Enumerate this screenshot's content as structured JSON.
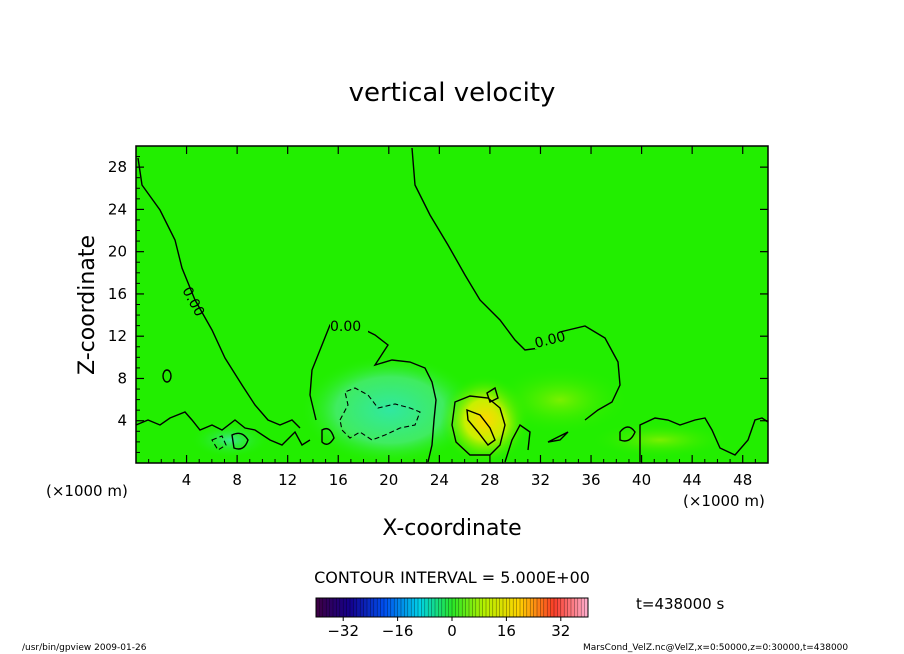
{
  "chart_data": {
    "type": "contour",
    "title": "vertical velocity",
    "xlabel": "X-coordinate",
    "ylabel": "Z-coordinate",
    "x_unit_left": "(×1000 m)",
    "x_unit_right": "(×1000 m)",
    "xlim": [
      0,
      50
    ],
    "ylim": [
      0,
      30
    ],
    "xticks": [
      4,
      8,
      12,
      16,
      20,
      24,
      28,
      32,
      36,
      40,
      44,
      48
    ],
    "yticks": [
      4,
      8,
      12,
      16,
      20,
      24,
      28
    ],
    "contour_interval_text": "CONTOUR INTERVAL = 5.000E+00",
    "contour_labels": [
      "0.00",
      "0.00",
      "0.00"
    ],
    "colorbar": {
      "ticks": [
        -32,
        -16,
        0,
        16,
        32
      ],
      "range": [
        -40,
        40
      ]
    },
    "time_text": "t=438000 s",
    "background_color": "#22ee00",
    "positive_blob": {
      "x": 28,
      "y": 3.5
    },
    "negative_blob": {
      "x": 20,
      "y": 4
    }
  },
  "footer": {
    "left": "/usr/bin/gpview  2009-01-26",
    "right": "MarsCond_VelZ.nc@VelZ,x=0:50000,z=0:30000,t=438000"
  }
}
